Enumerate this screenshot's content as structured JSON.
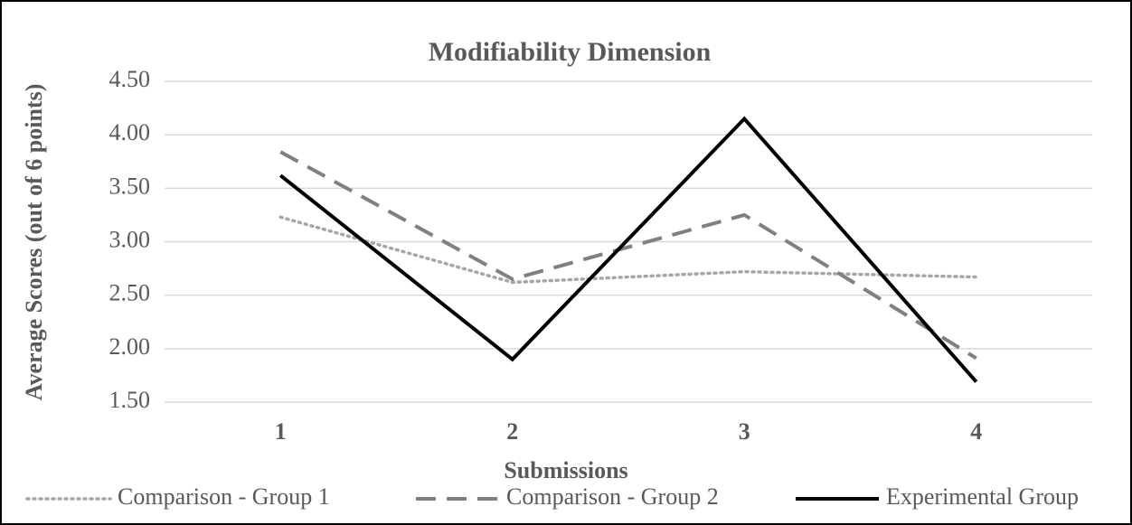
{
  "chart_data": {
    "type": "line",
    "title": "Modifiability Dimension",
    "x_label": "Submissions",
    "y_label": "Average Scores (out of 6 points)",
    "categories": [
      "1",
      "2",
      "3",
      "4"
    ],
    "series": [
      {
        "name": "Comparison - Group 1",
        "color": "#a6a6a6",
        "dash": "dotted",
        "values": [
          3.23,
          2.62,
          2.72,
          2.67
        ]
      },
      {
        "name": "Comparison - Group 2",
        "color": "#808080",
        "dash": "dashed",
        "values": [
          3.84,
          2.65,
          3.25,
          1.91
        ]
      },
      {
        "name": "Experimental Group",
        "color": "#000000",
        "dash": "solid",
        "values": [
          3.62,
          1.9,
          4.15,
          1.69
        ]
      }
    ],
    "ylim": [
      1.5,
      4.5
    ],
    "yticks": [
      {
        "value": 1.5,
        "label": "1.50"
      },
      {
        "value": 2,
        "label": "2.00"
      },
      {
        "value": 2.5,
        "label": "2.50"
      },
      {
        "value": 3,
        "label": "3.00"
      },
      {
        "value": 3.5,
        "label": "3.50"
      },
      {
        "value": 4,
        "label": "4.00"
      },
      {
        "value": 4.5,
        "label": "4.50"
      }
    ],
    "grid": true,
    "legend": "bottom"
  }
}
